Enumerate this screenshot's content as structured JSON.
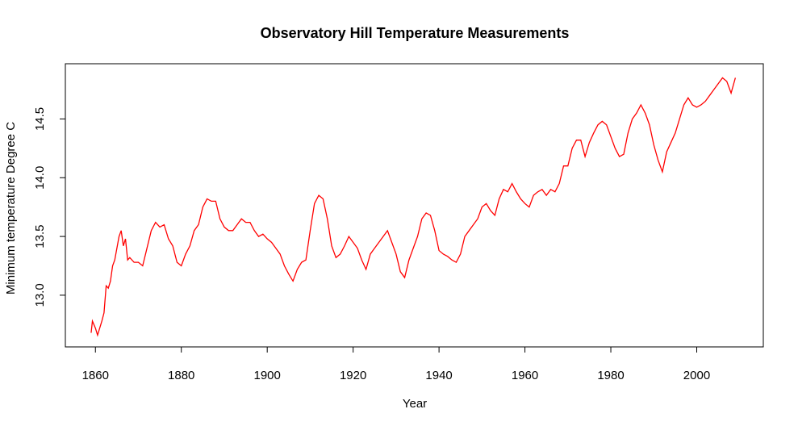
{
  "chart_data": {
    "type": "line",
    "title": "Observatory Hill Temperature Measurements",
    "x_label": "Year",
    "y_label": "Minimum temperature Degree C",
    "x": [
      1859,
      1859.3,
      1860,
      1860.5,
      1861,
      1861.5,
      1862,
      1862.5,
      1863,
      1863.5,
      1864,
      1864.5,
      1865,
      1865.5,
      1866,
      1866.5,
      1867,
      1867.5,
      1868,
      1869,
      1870,
      1871,
      1872,
      1873,
      1874,
      1875,
      1876,
      1877,
      1878,
      1879,
      1880,
      1881,
      1882,
      1883,
      1884,
      1885,
      1886,
      1887,
      1888,
      1889,
      1890,
      1891,
      1892,
      1893,
      1894,
      1895,
      1896,
      1897,
      1898,
      1899,
      1900,
      1901,
      1902,
      1903,
      1904,
      1905,
      1906,
      1907,
      1908,
      1909,
      1910,
      1911,
      1912,
      1913,
      1914,
      1915,
      1916,
      1917,
      1918,
      1919,
      1920,
      1921,
      1922,
      1923,
      1924,
      1925,
      1926,
      1927,
      1928,
      1929,
      1930,
      1931,
      1932,
      1933,
      1934,
      1935,
      1936,
      1937,
      1938,
      1939,
      1940,
      1941,
      1942,
      1943,
      1944,
      1945,
      1946,
      1947,
      1948,
      1949,
      1950,
      1951,
      1952,
      1953,
      1954,
      1955,
      1956,
      1957,
      1958,
      1959,
      1960,
      1961,
      1962,
      1963,
      1964,
      1965,
      1966,
      1967,
      1968,
      1969,
      1970,
      1971,
      1972,
      1973,
      1974,
      1975,
      1976,
      1977,
      1978,
      1979,
      1980,
      1981,
      1982,
      1983,
      1984,
      1985,
      1986,
      1987,
      1988,
      1989,
      1990,
      1991,
      1992,
      1993,
      1994,
      1995,
      1996,
      1997,
      1998,
      1999,
      2000,
      2001,
      2002,
      2003,
      2004,
      2005,
      2006,
      2007,
      2008,
      2009
    ],
    "series": [
      {
        "color": "#ff0000",
        "values": [
          12.68,
          12.78,
          12.72,
          12.66,
          12.72,
          12.78,
          12.85,
          13.08,
          13.06,
          13.12,
          13.25,
          13.3,
          13.4,
          13.5,
          13.55,
          13.42,
          13.48,
          13.3,
          13.32,
          13.28,
          13.28,
          13.25,
          13.4,
          13.55,
          13.62,
          13.58,
          13.6,
          13.48,
          13.42,
          13.28,
          13.25,
          13.35,
          13.42,
          13.55,
          13.6,
          13.75,
          13.82,
          13.8,
          13.8,
          13.65,
          13.58,
          13.55,
          13.55,
          13.6,
          13.65,
          13.62,
          13.62,
          13.55,
          13.5,
          13.52,
          13.48,
          13.45,
          13.4,
          13.35,
          13.25,
          13.18,
          13.12,
          13.22,
          13.28,
          13.3,
          13.55,
          13.78,
          13.85,
          13.82,
          13.65,
          13.42,
          13.32,
          13.35,
          13.42,
          13.5,
          13.45,
          13.4,
          13.3,
          13.22,
          13.35,
          13.4,
          13.45,
          13.5,
          13.55,
          13.45,
          13.35,
          13.2,
          13.15,
          13.3,
          13.4,
          13.5,
          13.65,
          13.7,
          13.68,
          13.55,
          13.38,
          13.35,
          13.33,
          13.3,
          13.28,
          13.35,
          13.5,
          13.55,
          13.6,
          13.65,
          13.75,
          13.78,
          13.72,
          13.68,
          13.82,
          13.9,
          13.88,
          13.95,
          13.88,
          13.82,
          13.78,
          13.75,
          13.85,
          13.88,
          13.9,
          13.85,
          13.9,
          13.88,
          13.95,
          14.1,
          14.1,
          14.25,
          14.32,
          14.32,
          14.18,
          14.3,
          14.38,
          14.45,
          14.48,
          14.45,
          14.35,
          14.25,
          14.18,
          14.2,
          14.38,
          14.5,
          14.55,
          14.62,
          14.55,
          14.45,
          14.28,
          14.15,
          14.05,
          14.22,
          14.3,
          14.38,
          14.5,
          14.62,
          14.68,
          14.62,
          14.6,
          14.62,
          14.65,
          14.7,
          14.75,
          14.8,
          14.85,
          14.82,
          14.72,
          14.85
        ]
      }
    ],
    "xlim": [
      1853,
      2015.5
    ],
    "ylim": [
      12.56,
      14.97
    ],
    "xticks": [
      1860,
      1880,
      1900,
      1920,
      1940,
      1960,
      1980,
      2000
    ],
    "yticks": [
      {
        "value": 13,
        "label": "13.0"
      },
      13.5,
      {
        "value": 14,
        "label": "14.0"
      },
      14.5
    ]
  }
}
